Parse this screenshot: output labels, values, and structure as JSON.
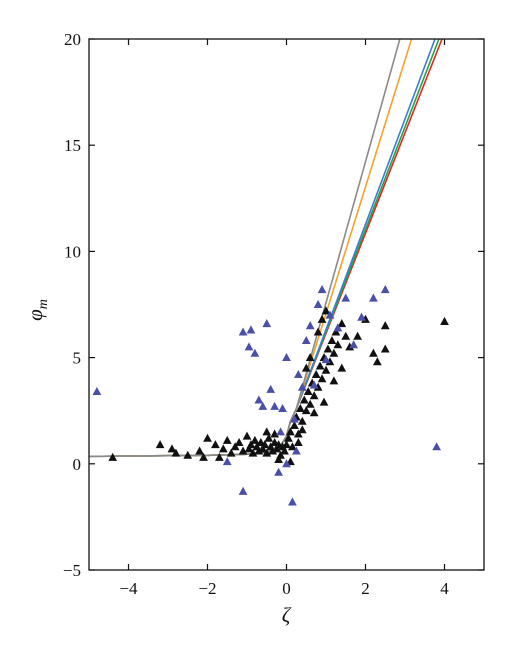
{
  "chart_data": {
    "type": "scatter",
    "title": "",
    "xlabel": "ζ",
    "ylabel": "φ_m",
    "xlim": [
      -5,
      5
    ],
    "ylim": [
      -5,
      20
    ],
    "xticks": [
      -4,
      -2,
      0,
      2,
      4
    ],
    "yticks": [
      -5,
      0,
      5,
      10,
      15,
      20
    ],
    "xtick_labels": [
      "−4",
      "−2",
      "0",
      "2",
      "4"
    ],
    "ytick_labels": [
      "−5",
      "0",
      "5",
      "10",
      "15",
      "20"
    ],
    "grid": false,
    "legend": "none",
    "scatter_series": [
      {
        "color": "#111111",
        "marker": "triangle",
        "points": [
          [
            -4.4,
            0.3
          ],
          [
            -3.2,
            0.9
          ],
          [
            -2.9,
            0.7
          ],
          [
            -2.8,
            0.5
          ],
          [
            -2.5,
            0.4
          ],
          [
            -2.2,
            0.6
          ],
          [
            -2.0,
            1.2
          ],
          [
            -1.8,
            0.9
          ],
          [
            -1.6,
            0.7
          ],
          [
            -1.5,
            1.1
          ],
          [
            -1.4,
            0.5
          ],
          [
            -1.3,
            0.8
          ],
          [
            -1.2,
            1.0
          ],
          [
            -1.1,
            0.6
          ],
          [
            -1.0,
            1.3
          ],
          [
            -0.95,
            0.7
          ],
          [
            -0.9,
            0.9
          ],
          [
            -0.85,
            0.5
          ],
          [
            -0.8,
            1.1
          ],
          [
            -0.75,
            0.8
          ],
          [
            -0.7,
            0.6
          ],
          [
            -0.65,
            1.0
          ],
          [
            -0.6,
            0.7
          ],
          [
            -0.55,
            0.9
          ],
          [
            -0.5,
            0.5
          ],
          [
            -0.45,
            1.2
          ],
          [
            -0.4,
            0.8
          ],
          [
            -0.35,
            0.6
          ],
          [
            -0.3,
            1.0
          ],
          [
            -0.25,
            0.7
          ],
          [
            -0.2,
            0.9
          ],
          [
            -0.15,
            0.4
          ],
          [
            -0.1,
            0.8
          ],
          [
            -0.05,
            0.6
          ],
          [
            0.0,
            0.9
          ],
          [
            0.05,
            1.2
          ],
          [
            0.1,
            1.5
          ],
          [
            0.15,
            0.8
          ],
          [
            0.2,
            1.8
          ],
          [
            0.25,
            2.2
          ],
          [
            0.3,
            1.4
          ],
          [
            0.35,
            2.6
          ],
          [
            0.4,
            2.0
          ],
          [
            0.45,
            3.0
          ],
          [
            0.5,
            2.5
          ],
          [
            0.55,
            3.4
          ],
          [
            0.6,
            2.8
          ],
          [
            0.65,
            3.8
          ],
          [
            0.7,
            3.2
          ],
          [
            0.75,
            4.2
          ],
          [
            0.8,
            3.6
          ],
          [
            0.85,
            4.6
          ],
          [
            0.9,
            4.0
          ],
          [
            0.95,
            5.0
          ],
          [
            1.0,
            4.4
          ],
          [
            1.05,
            5.4
          ],
          [
            1.1,
            4.8
          ],
          [
            1.15,
            5.8
          ],
          [
            1.2,
            5.2
          ],
          [
            1.25,
            6.2
          ],
          [
            1.3,
            5.6
          ],
          [
            1.4,
            6.6
          ],
          [
            1.5,
            6.0
          ],
          [
            1.0,
            7.2
          ],
          [
            0.9,
            6.8
          ],
          [
            0.8,
            6.2
          ],
          [
            0.6,
            5.0
          ],
          [
            0.5,
            4.5
          ],
          [
            1.6,
            5.5
          ],
          [
            1.8,
            6.0
          ],
          [
            2.0,
            6.8
          ],
          [
            2.2,
            5.2
          ],
          [
            2.3,
            4.8
          ],
          [
            2.5,
            6.5
          ],
          [
            2.5,
            5.4
          ],
          [
            4.0,
            6.7
          ],
          [
            -0.2,
            0.2
          ],
          [
            0.1,
            0.1
          ],
          [
            -1.7,
            0.3
          ],
          [
            -2.1,
            0.3
          ],
          [
            0.7,
            2.4
          ],
          [
            0.4,
            1.6
          ],
          [
            0.3,
            1.0
          ],
          [
            1.2,
            3.9
          ],
          [
            1.4,
            4.5
          ],
          [
            0.95,
            2.9
          ],
          [
            -0.5,
            1.5
          ],
          [
            -0.3,
            1.4
          ]
        ]
      },
      {
        "color": "#4a4fa8",
        "marker": "triangle",
        "points": [
          [
            -4.8,
            3.4
          ],
          [
            -1.1,
            6.2
          ],
          [
            -0.9,
            6.3
          ],
          [
            -0.5,
            6.6
          ],
          [
            -0.4,
            3.5
          ],
          [
            -0.6,
            2.7
          ],
          [
            -0.7,
            3.0
          ],
          [
            -0.8,
            5.2
          ],
          [
            -0.95,
            5.5
          ],
          [
            -0.3,
            2.7
          ],
          [
            -0.1,
            2.6
          ],
          [
            0.0,
            5.0
          ],
          [
            0.3,
            4.2
          ],
          [
            0.5,
            5.8
          ],
          [
            0.6,
            6.5
          ],
          [
            0.8,
            7.5
          ],
          [
            0.9,
            8.2
          ],
          [
            1.1,
            7.0
          ],
          [
            1.3,
            6.4
          ],
          [
            1.5,
            7.8
          ],
          [
            2.2,
            7.8
          ],
          [
            2.5,
            8.2
          ],
          [
            1.9,
            6.9
          ],
          [
            0.4,
            3.6
          ],
          [
            0.2,
            2.1
          ],
          [
            -1.5,
            0.1
          ],
          [
            -1.1,
            -1.3
          ],
          [
            0.15,
            -1.8
          ],
          [
            3.8,
            0.8
          ],
          [
            -0.15,
            1.5
          ],
          [
            0.7,
            3.7
          ],
          [
            1.0,
            4.9
          ],
          [
            -0.2,
            -0.4
          ],
          [
            0.0,
            0.0
          ],
          [
            0.25,
            0.6
          ],
          [
            1.7,
            5.6
          ]
        ]
      }
    ],
    "line_series": [
      {
        "color": "#e02b20",
        "x": [
          -5,
          -2,
          -1,
          -0.5,
          -0.2,
          0,
          0.1,
          0.25,
          4
        ],
        "y": [
          0.35,
          0.4,
          0.45,
          0.55,
          0.7,
          1.3,
          2.0,
          2.6,
          20.3
        ]
      },
      {
        "color": "#2aa04a",
        "x": [
          -5,
          -2,
          -1,
          -0.5,
          -0.2,
          0,
          0.1,
          0.25,
          3.9
        ],
        "y": [
          0.35,
          0.4,
          0.45,
          0.55,
          0.7,
          1.3,
          2.0,
          2.6,
          20.2
        ]
      },
      {
        "color": "#3a7fd0",
        "x": [
          -5,
          -2,
          -1,
          -0.5,
          -0.2,
          0,
          0.1,
          0.25,
          3.8
        ],
        "y": [
          0.35,
          0.4,
          0.45,
          0.55,
          0.7,
          1.3,
          2.0,
          2.6,
          20.2
        ]
      },
      {
        "color": "#f5a22a",
        "x": [
          -5,
          -2,
          -1,
          -0.5,
          -0.2,
          0,
          0.1,
          0.25,
          3.2
        ],
        "y": [
          0.35,
          0.4,
          0.45,
          0.55,
          0.7,
          1.3,
          2.0,
          2.6,
          20.2
        ]
      },
      {
        "color": "#8a8a8a",
        "x": [
          -5,
          -2,
          -1,
          -0.5,
          -0.2,
          0,
          0.1,
          0.25,
          2.9
        ],
        "y": [
          0.35,
          0.4,
          0.45,
          0.55,
          0.7,
          1.3,
          2.0,
          2.6,
          20.2
        ]
      }
    ]
  }
}
